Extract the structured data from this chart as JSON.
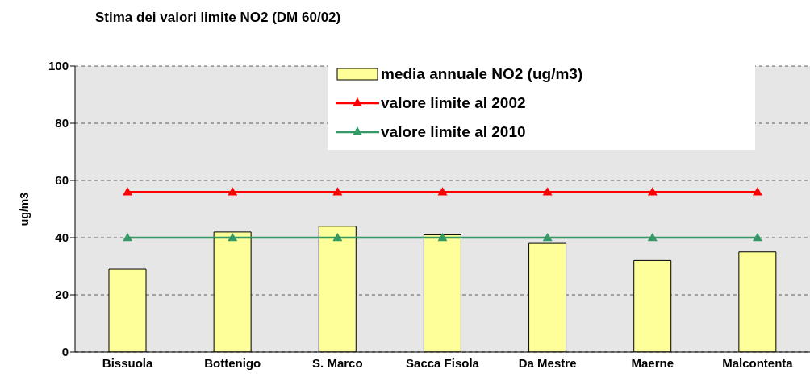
{
  "chart_data": {
    "type": "bar",
    "title": "Stima dei valori limite NO2 (DM 60/02)",
    "ylabel": "ug/m3",
    "categories": [
      "Bissuola",
      "Bottenigo",
      "S. Marco",
      "Sacca Fisola",
      "Da Mestre",
      "Maerne",
      "Malcontenta"
    ],
    "series": [
      {
        "name": "media annuale NO2 (ug/m3)",
        "color": "#ffff99",
        "values": [
          29,
          42,
          44,
          41,
          38,
          32,
          35
        ]
      },
      {
        "name": "valore limite al 2002",
        "type": "line",
        "color": "#ff0000",
        "values": [
          56,
          56,
          56,
          56,
          56,
          56,
          56
        ]
      },
      {
        "name": "valore limite al 2010",
        "type": "line",
        "color": "#339966",
        "values": [
          40,
          40,
          40,
          40,
          40,
          40,
          40
        ]
      }
    ],
    "ylim": [
      0,
      100
    ],
    "yticks": [
      0,
      20,
      40,
      60,
      80,
      100
    ],
    "grid": "y",
    "legend": "top right",
    "marker": "triangle"
  }
}
